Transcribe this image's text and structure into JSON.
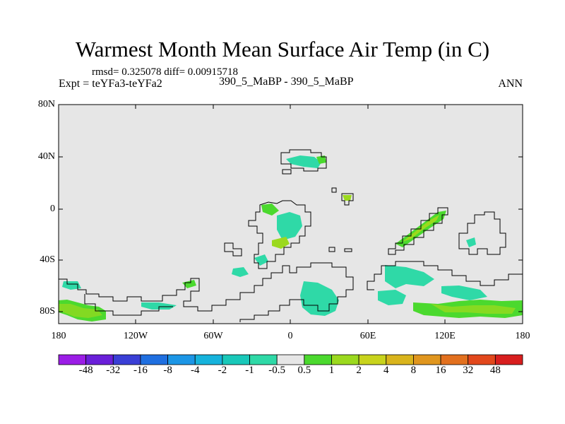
{
  "header": {
    "title": "Warmest Month Mean Surface Air Temp (in C)",
    "stats": "rmsd= 0.325078 diff= 0.00915718",
    "expt": "Expt = teYFa3-teYFa2",
    "subtitle": "390_5_MaBP - 390_5_MaBP",
    "season": "ANN"
  },
  "axes": {
    "lat_labels": [
      "80N",
      "40N",
      "0",
      "40S",
      "80S"
    ],
    "lon_labels": [
      "180",
      "120W",
      "60W",
      "0",
      "60E",
      "120E",
      "180"
    ]
  },
  "colorbar": {
    "labels": [
      "-48",
      "-32",
      "-16",
      "-8",
      "-4",
      "-2",
      "-1",
      "-0.5",
      "0.5",
      "1",
      "2",
      "4",
      "8",
      "16",
      "32",
      "48"
    ],
    "colors": [
      "#9b1de6",
      "#6a1fd9",
      "#3a3fd6",
      "#1f6fe0",
      "#1c96e6",
      "#16b3dc",
      "#19c8b9",
      "#2fd9a7",
      "#e6e6e6",
      "#4bd92e",
      "#9bd91e",
      "#c8d31c",
      "#d9b41c",
      "#e0961e",
      "#e2701e",
      "#e2481c",
      "#d81e1e"
    ]
  },
  "map": {
    "background_color": "#e6e6e6",
    "coast_color": "#000000"
  }
}
